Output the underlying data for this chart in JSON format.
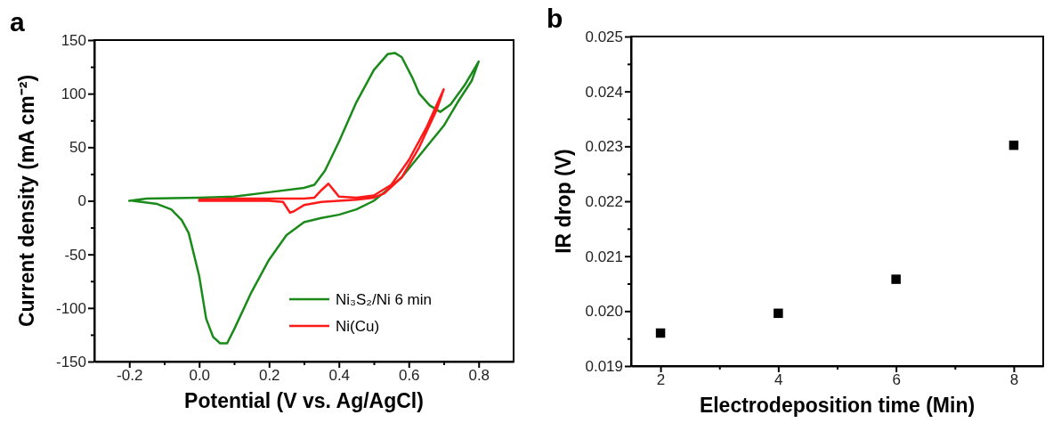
{
  "chart_data": [
    {
      "type": "line",
      "annotations": [
        "a"
      ],
      "xlabel": "Potential (V vs. Ag/AgCl)",
      "ylabel": "Current density (mA cm⁻²)",
      "xlim": [
        -0.3,
        0.9
      ],
      "ylim": [
        -150,
        150
      ],
      "xticks": [
        -0.2,
        {
          "value": -0.1,
          "label": null
        },
        {
          "value": 0,
          "label": "0.0"
        },
        {
          "value": 0.1,
          "label": null
        },
        0.2,
        {
          "value": 0.3,
          "label": null
        },
        0.4,
        {
          "value": 0.5,
          "label": null
        },
        0.6,
        {
          "value": 0.7,
          "label": null
        },
        0.8
      ],
      "yticks": [
        -150,
        {
          "value": -125,
          "label": null
        },
        -100,
        {
          "value": -75,
          "label": null
        },
        -50,
        {
          "value": -25,
          "label": null
        },
        0,
        {
          "value": 25,
          "label": null
        },
        50,
        {
          "value": 75,
          "label": null
        },
        100,
        {
          "value": 125,
          "label": null
        },
        150
      ],
      "legend": "bottom right",
      "marker": "none",
      "line_style": "solid",
      "grid": false,
      "series": [
        {
          "name": "Ni₃S₂/Ni 6 min",
          "color": "#1a8a1a",
          "x": [
            -0.2,
            -0.15,
            0,
            0.1,
            0.2,
            0.3,
            0.33,
            0.36,
            0.4,
            0.45,
            0.5,
            0.54,
            0.56,
            0.58,
            0.61,
            0.63,
            0.66,
            0.69,
            0.72,
            0.76,
            0.8,
            0.78,
            0.74,
            0.7,
            0.65,
            0.62,
            0.58,
            0.53,
            0.5,
            0.45,
            0.4,
            0.35,
            0.3,
            0.25,
            0.2,
            0.15,
            0.1,
            0.08,
            0.06,
            0.04,
            0.02,
            0,
            -0.03,
            -0.05,
            -0.08,
            -0.12,
            -0.19
          ],
          "values": [
            0,
            2,
            3,
            4,
            8,
            12,
            15,
            28,
            55,
            92,
            122,
            137,
            138,
            134,
            115,
            100,
            89,
            83,
            90,
            108,
            130,
            112,
            92,
            70,
            50,
            38,
            22,
            8,
            0,
            -8,
            -13,
            -16,
            -20,
            -32,
            -55,
            -85,
            -120,
            -133,
            -133,
            -127,
            -110,
            -70,
            -30,
            -18,
            -8,
            -3,
            0
          ]
        },
        {
          "name": "Ni(Cu)",
          "color": "#ff1a1a",
          "x": [
            0,
            0.1,
            0.2,
            0.3,
            0.33,
            0.35,
            0.37,
            0.39,
            0.4,
            0.45,
            0.5,
            0.55,
            0.6,
            0.65,
            0.7,
            0.68,
            0.63,
            0.58,
            0.53,
            0.5,
            0.45,
            0.35,
            0.3,
            0.27,
            0.26,
            0.25,
            0.24,
            0.2,
            0.1,
            0
          ],
          "values": [
            1,
            2,
            2,
            2,
            3,
            10,
            16,
            8,
            4,
            3,
            5,
            15,
            38,
            68,
            104,
            85,
            50,
            22,
            7,
            3,
            1,
            -1,
            -4,
            -10,
            -11,
            -6,
            -1,
            0,
            0,
            0
          ]
        }
      ]
    },
    {
      "type": "scatter",
      "annotations": [
        "b"
      ],
      "xlabel": "Electrodeposition time (Min)",
      "ylabel": "IR drop (V)",
      "xlim": [
        1.5,
        8.5
      ],
      "ylim": [
        0.019,
        0.025
      ],
      "xticks": [
        2,
        {
          "value": 3,
          "label": null
        },
        4,
        {
          "value": 5,
          "label": null
        },
        6,
        {
          "value": 7,
          "label": null
        },
        8
      ],
      "yticks": [
        0.019,
        {
          "value": 0.0195,
          "label": null
        },
        {
          "value": 0.02,
          "label": "0.020"
        },
        {
          "value": 0.0205,
          "label": null
        },
        0.021,
        {
          "value": 0.0215,
          "label": null
        },
        0.022,
        {
          "value": 0.0225,
          "label": null
        },
        0.023,
        {
          "value": 0.0235,
          "label": null
        },
        0.024,
        {
          "value": 0.0245,
          "label": null
        },
        0.025
      ],
      "marker": "square",
      "grid": false,
      "legend": false,
      "series": [
        {
          "color": "#000000",
          "x": [
            2,
            4,
            6,
            8
          ],
          "values": [
            0.0196,
            0.01996,
            0.02058,
            0.02302
          ]
        }
      ]
    }
  ]
}
